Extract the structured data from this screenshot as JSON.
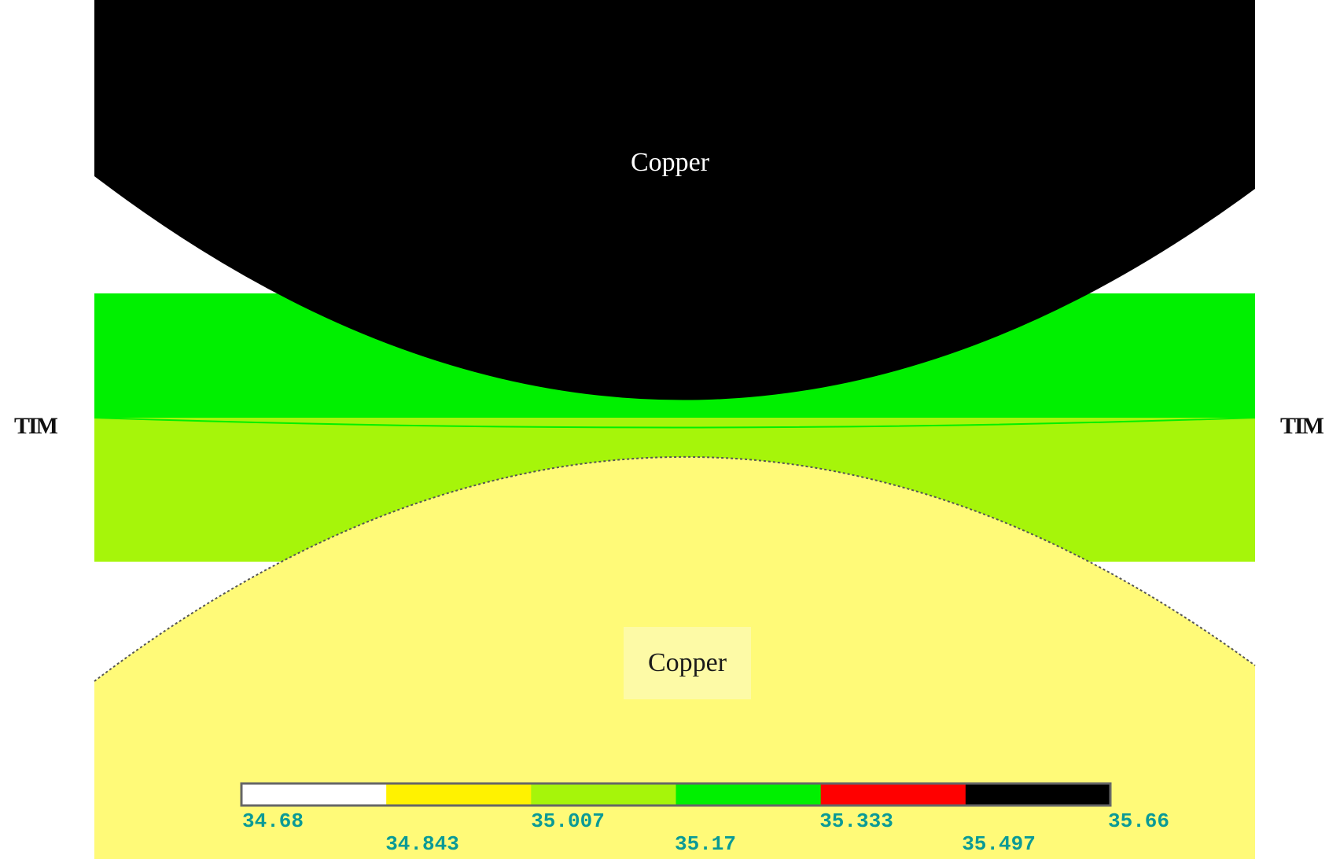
{
  "labels": {
    "copper_top": "Copper",
    "copper_bottom": "Copper",
    "tim_left": "TIM",
    "tim_right": "TIM"
  },
  "regions": {
    "copper_top_color": "#000000",
    "copper_bottom_color": "#fffa78",
    "tim_upper_color": "#00f000",
    "tim_lower_color": "#a6f50a"
  },
  "legend": {
    "bands": [
      "#ffffff",
      "#fff200",
      "#a6f50a",
      "#00f000",
      "#ff0000",
      "#000000"
    ],
    "ticks_upper": [
      "34.68",
      "35.007",
      "35.333",
      "35.66"
    ],
    "ticks_lower": [
      "34.843",
      "35.17",
      "35.497"
    ]
  }
}
